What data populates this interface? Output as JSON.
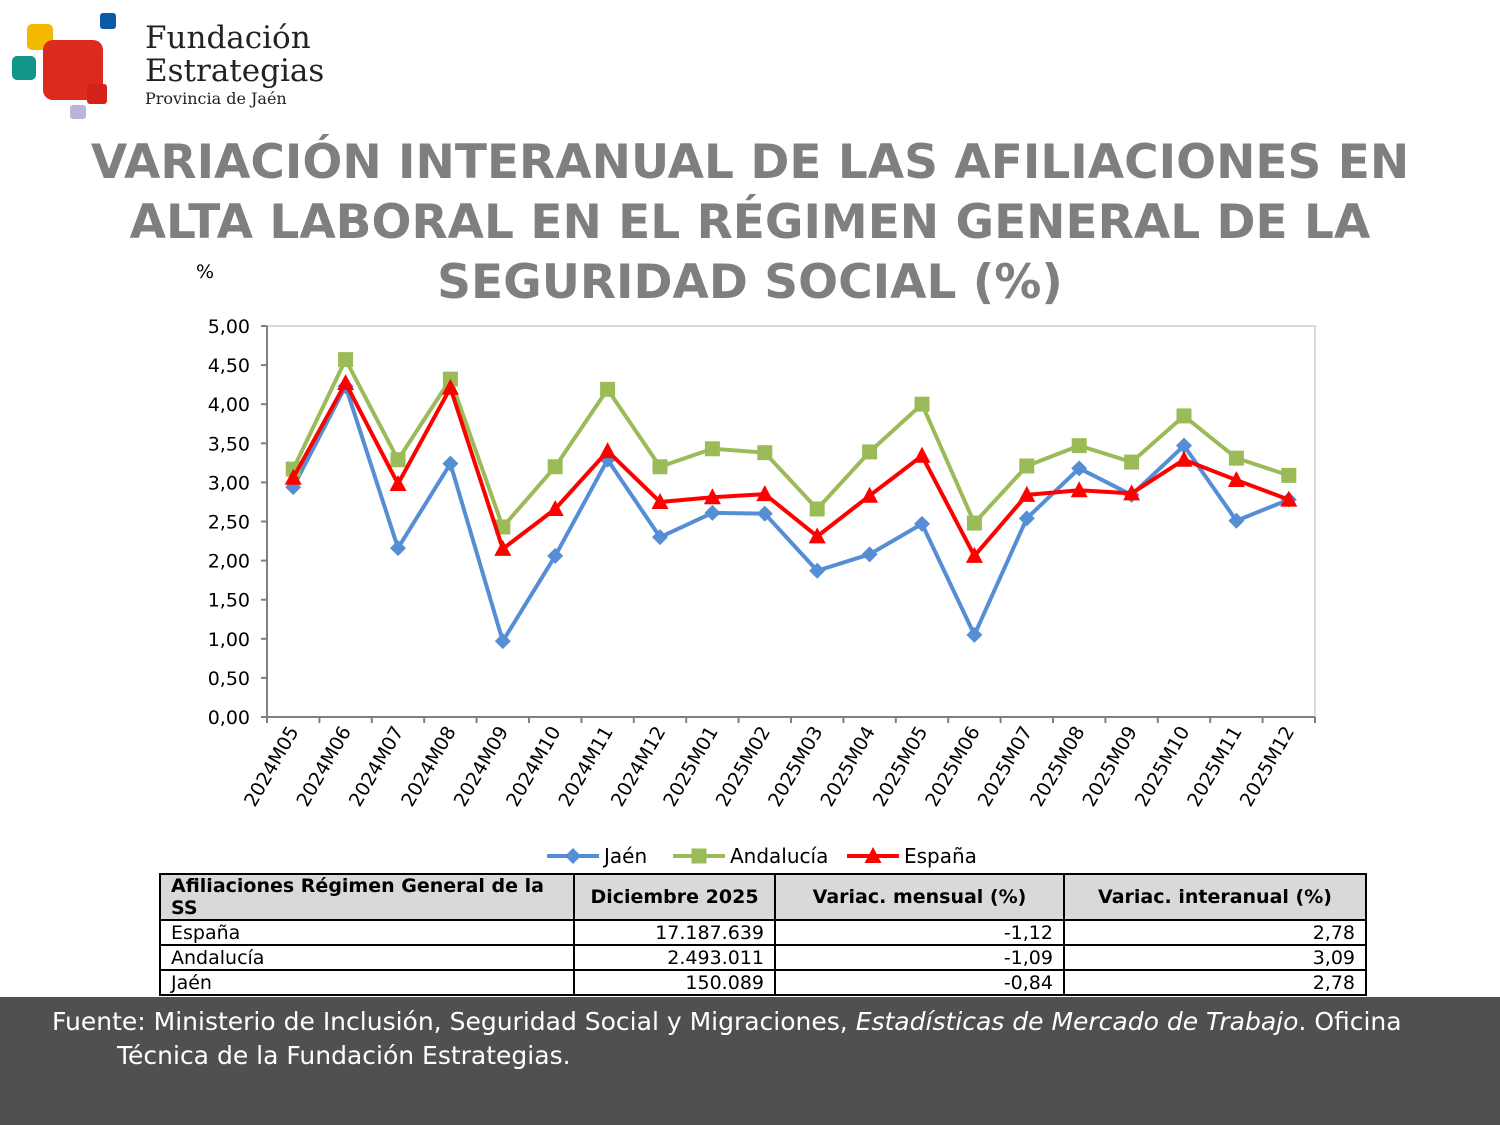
{
  "logo": {
    "line1": "Fundación",
    "line2": "Estrategias",
    "line3": "Provincia de Jaén"
  },
  "title": "VARIACIÓN INTERANUAL DE LAS AFILIACIONES EN ALTA LABORAL EN EL RÉGIMEN GENERAL DE LA SEGURIDAD SOCIAL (%)",
  "chart_data": {
    "type": "line",
    "ylabel": "%",
    "ylim": [
      0,
      5
    ],
    "yticks": [
      "0,00",
      "0,50",
      "1,00",
      "1,50",
      "2,00",
      "2,50",
      "3,00",
      "3,50",
      "4,00",
      "4,50",
      "5,00"
    ],
    "grid": false,
    "legend_position": "bottom",
    "categories": [
      "2024M05",
      "2024M06",
      "2024M07",
      "2024M08",
      "2024M09",
      "2024M10",
      "2024M11",
      "2024M12",
      "2025M01",
      "2025M02",
      "2025M03",
      "2025M04",
      "2025M05",
      "2025M06",
      "2025M07",
      "2025M08",
      "2025M09",
      "2025M10",
      "2025M11",
      "2025M12"
    ],
    "series": [
      {
        "name": "Jaén",
        "color": "#558ed5",
        "marker": "diamond",
        "values": [
          2.94,
          4.23,
          2.16,
          3.24,
          0.97,
          2.06,
          3.29,
          2.3,
          2.61,
          2.6,
          1.87,
          2.08,
          2.47,
          1.05,
          2.54,
          3.18,
          2.84,
          3.47,
          2.51,
          2.78
        ]
      },
      {
        "name": "Andalucía",
        "color": "#9bbb59",
        "marker": "square",
        "values": [
          3.17,
          4.57,
          3.29,
          4.32,
          2.43,
          3.2,
          4.19,
          3.2,
          3.43,
          3.38,
          2.66,
          3.39,
          4.0,
          2.48,
          3.21,
          3.47,
          3.26,
          3.85,
          3.31,
          3.09
        ]
      },
      {
        "name": "España",
        "color": "#ff0000",
        "marker": "triangle",
        "values": [
          3.06,
          4.27,
          2.98,
          4.21,
          2.15,
          2.66,
          3.4,
          2.75,
          2.81,
          2.85,
          2.31,
          2.83,
          3.34,
          2.06,
          2.84,
          2.9,
          2.86,
          3.29,
          3.03,
          2.78
        ]
      }
    ]
  },
  "table": {
    "headers": [
      "Afiliaciones Régimen General de la SS",
      "Diciembre 2025",
      "Variac. mensual (%)",
      "Variac. interanual (%)"
    ],
    "rows": [
      [
        "España",
        "17.187.639",
        "-1,12",
        "2,78"
      ],
      [
        "Andalucía",
        "2.493.011",
        "-1,09",
        "3,09"
      ],
      [
        "Jaén",
        "150.089",
        "-0,84",
        "2,78"
      ]
    ]
  },
  "footer": {
    "prefix": "Fuente: Ministerio de Inclusión, Seguridad Social y Migraciones, ",
    "italic": "Estadísticas de Mercado de Trabajo",
    "suffix": ". Oficina",
    "line2": "Técnica de la Fundación Estrategias."
  }
}
